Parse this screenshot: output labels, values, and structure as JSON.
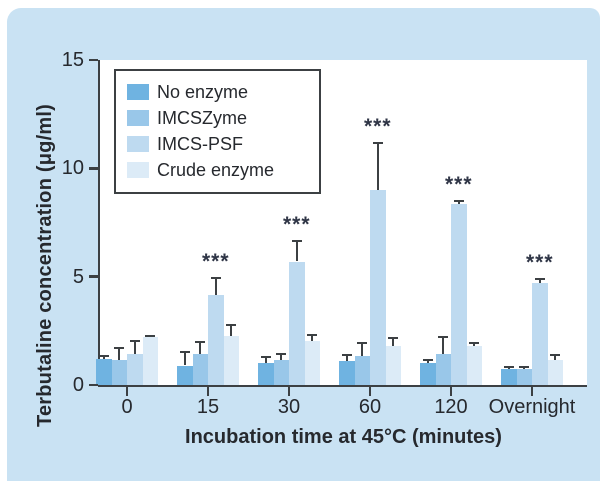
{
  "panel_background": "#c9e2f3",
  "axis_color": "#3c4043",
  "text_color": "#26292e",
  "chart_data": {
    "type": "bar",
    "title": "",
    "xlabel": "Incubation time at 45°C (minutes)",
    "ylabel": "Terbutaline concentration (μg/ml)",
    "categories": [
      "0",
      "15",
      "30",
      "60",
      "120",
      "Overnight"
    ],
    "ylim": [
      0,
      15
    ],
    "yticks": [
      0,
      5,
      10,
      15
    ],
    "grid": false,
    "legend_position": "top-left-inside",
    "error_bars": "upper-only",
    "series": [
      {
        "name": "No enzyme",
        "color": "#6fb3e1",
        "values": [
          1.2,
          0.9,
          1.0,
          1.1,
          1.0,
          0.75
        ],
        "errors": [
          0.2,
          0.65,
          0.35,
          0.35,
          0.2,
          0.12
        ]
      },
      {
        "name": "IMCSZyme",
        "color": "#99c7e9",
        "values": [
          1.15,
          1.45,
          1.15,
          1.35,
          1.45,
          0.72
        ],
        "errors": [
          0.6,
          0.6,
          0.35,
          0.65,
          0.8,
          0.18
        ]
      },
      {
        "name": "IMCS-PSF",
        "color": "#bedaf0",
        "values": [
          1.45,
          4.15,
          5.7,
          9.0,
          8.35,
          4.7
        ],
        "errors": [
          0.65,
          0.85,
          1.0,
          2.2,
          0.2,
          0.25
        ]
      },
      {
        "name": "Crude enzyme",
        "color": "#dcebf7",
        "values": [
          2.2,
          2.25,
          2.05,
          1.8,
          1.8,
          1.15
        ],
        "errors": [
          0.12,
          0.55,
          0.3,
          0.4,
          0.2,
          0.3
        ]
      }
    ],
    "significance": {
      "symbol": "***",
      "on_series": "IMCS-PSF",
      "at_categories": [
        "15",
        "30",
        "60",
        "120",
        "Overnight"
      ]
    }
  }
}
